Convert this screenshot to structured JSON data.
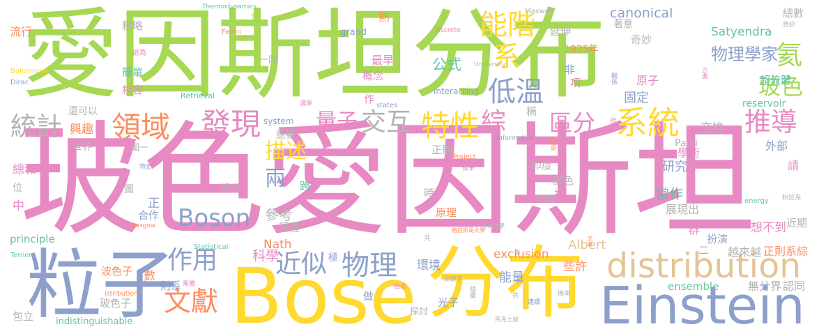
{
  "palette": {
    "green": "#a6d854",
    "teal": "#66c2a5",
    "pink": "#e78ac3",
    "blue": "#8da0cb",
    "yellow": "#ffd92f",
    "orange": "#fc8d62",
    "tan": "#e5c494",
    "grey": "#b3b3b3"
  },
  "words": [
    "愛因斯坦分布",
    "玻色愛因斯坦",
    "粒子",
    "Bose",
    "分布",
    "Einstein",
    "distribution",
    "系統",
    "發現",
    "領域",
    "特性",
    "能階",
    "系",
    "低溫",
    "物理",
    "近似",
    "文獻",
    "推導",
    "氦",
    "統計",
    "作用",
    "交互",
    "綜",
    "Boson",
    "區分",
    "玻色",
    "量子",
    "描述",
    "兩",
    "物理學家",
    "公式",
    "canonical",
    "當作",
    "參考",
    "科學",
    "Albert",
    "研究",
    "固定",
    "能量",
    "Satyendra",
    "exclusion",
    "Nath",
    "交換",
    "想不到",
    "總和",
    "中",
    "興趣",
    "正",
    "數",
    "環境",
    "些許",
    "正則系綜",
    "越來越",
    "無分界",
    "認同",
    "外部",
    "請",
    "學術",
    "展現出",
    "群",
    "原子",
    "最早",
    "熱",
    "流行",
    "ensemble",
    "principle",
    "近期",
    "扮演",
    "二",
    "奇妙",
    "總數",
    "超流體",
    "延伸",
    "非",
    "項",
    "稱",
    "概念",
    "作",
    "意義",
    "粗略",
    "簡單",
    "相容",
    "印度",
    "腳色",
    "裡",
    "時",
    "原理",
    "正則",
    "合作",
    "跨",
    "種種",
    "極",
    "光子",
    "做",
    "則系",
    "波色子",
    "玻色子",
    "包立",
    "reservoir",
    "Pauli",
    "1925年",
    "還可以",
    "世界",
    "位",
    "圖",
    "探討",
    "圖一",
    "過程",
    "一同",
    "indistinguishable",
    "grand",
    "system",
    "interacting",
    "Retrieval",
    "Fermi",
    "Dirac",
    "Boltzmann",
    "Maxwell",
    "states",
    "Statistical",
    "energy",
    "波茲曼",
    "嵌為",
    "共",
    "僅",
    "Information",
    "Project",
    "istribution",
    "discrete",
    "Terrier",
    "Thermodynamics",
    "Glasgow",
    "University",
    "資訊",
    "特定",
    "費米",
    "濃厚",
    "狄拉克",
    "檢索",
    "共",
    "連續",
    "機率",
    "黑體",
    "關鍵字",
    "熱物理學",
    "馬克士威",
    "格拉斯哥大學",
    "著名",
    "間",
    "連結",
    "指標",
    "關係",
    "古典",
    "文章",
    "隱藏",
    "著意"
  ]
}
